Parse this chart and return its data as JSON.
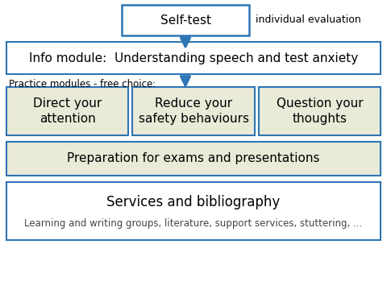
{
  "bg_color": "#ffffff",
  "box_border_color": "#2e75b6",
  "box_fill_white": "#ffffff",
  "box_fill_beige": "#eaead8",
  "arrow_color": "#2e75b6",
  "text_color": "#000000",
  "selftest_text": "Self-test",
  "selftest_note": "individual evaluation",
  "info_text": "Info module:  Understanding speech and test anxiety",
  "practice_label": "Practice modules - free choice:",
  "module1": "Direct your\nattention",
  "module2": "Reduce your\nsafety behaviours",
  "module3": "Question your\nthoughts",
  "prep_text": "Preparation for exams and presentations",
  "services_title": "Services and bibliography",
  "services_sub": "Learning and writing groups, literature, support services, stuttering, ...",
  "title_fontsize": 11,
  "small_fontsize": 9,
  "label_fontsize": 8.5,
  "sub_fontsize": 8.5
}
